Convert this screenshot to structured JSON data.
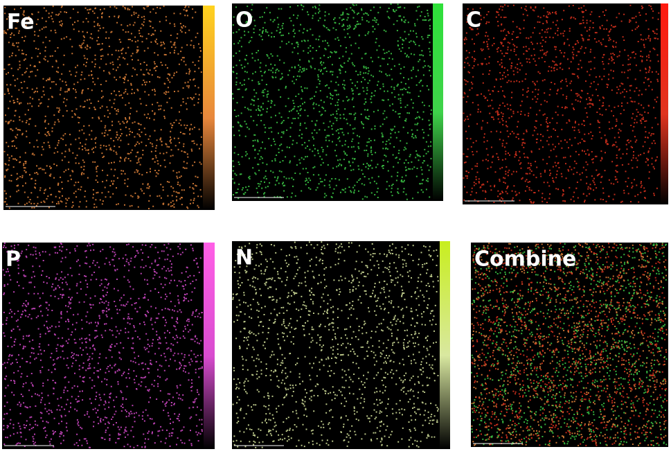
{
  "panels": [
    {
      "label": "Fe",
      "color": "#e8873c",
      "bar_top": "#ffd21e"
    },
    {
      "label": "O",
      "color": "#3fd24a",
      "bar_top": "#2fe03a"
    },
    {
      "label": "C",
      "color": "#e0341f",
      "bar_top": "#ff1a10"
    },
    {
      "label": "P",
      "color": "#d84ccf",
      "bar_top": "#ff5fe6"
    },
    {
      "label": "N",
      "color": "#d9e8a0",
      "bar_top": "#c8ee1e"
    },
    {
      "label": "Combine"
    }
  ]
}
